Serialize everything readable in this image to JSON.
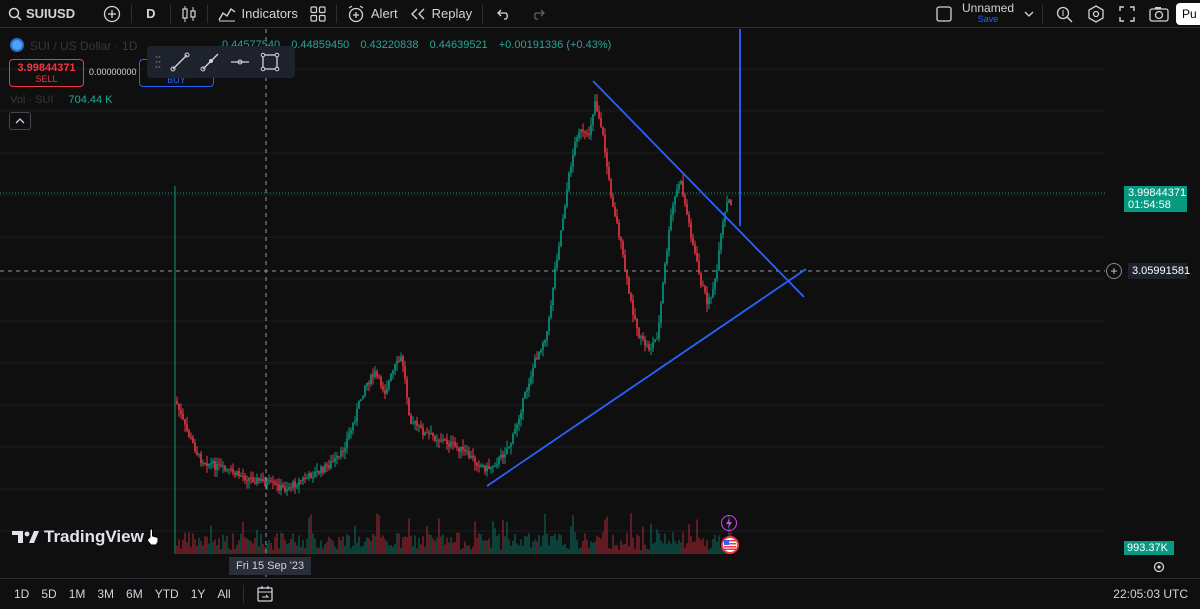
{
  "toolbar": {
    "symbol": "SUIUSD",
    "interval": "D",
    "indicators_label": "Indicators",
    "alert_label": "Alert",
    "replay_label": "Replay",
    "layout_name": "Unnamed",
    "layout_save": "Save",
    "publish_label": "Pu"
  },
  "legend": {
    "symbol_title": "SUI / US Dollar · 1D",
    "ohlc": [
      "0.44577540",
      "0.44859450",
      "0.43220838",
      "0.44639521",
      "+0.00191336 (+0.43%)"
    ],
    "sell_price": "3.99844371",
    "sell_label": "SELL",
    "spread": "0.00000000",
    "buy_label": "BUY",
    "volume_prefix": "Vol · SUI",
    "volume_value": "704.44 K"
  },
  "price_axis": {
    "last_price": "3.99844371",
    "countdown": "01:54:58",
    "crosshair_price": "3.05991581",
    "volume_value": "993.37K"
  },
  "time_axis": {
    "crosshair_date": "Fri 15 Sep '23"
  },
  "watermark": {
    "text": "TradingView"
  },
  "bottom": {
    "ranges": [
      "1D",
      "5D",
      "1M",
      "3M",
      "6M",
      "YTD",
      "1Y",
      "All"
    ],
    "clock": "22:05:03 UTC"
  },
  "colors": {
    "up": "#089981",
    "down": "#f23645",
    "trendline": "#2962ff",
    "background": "#0f0f0f"
  }
}
